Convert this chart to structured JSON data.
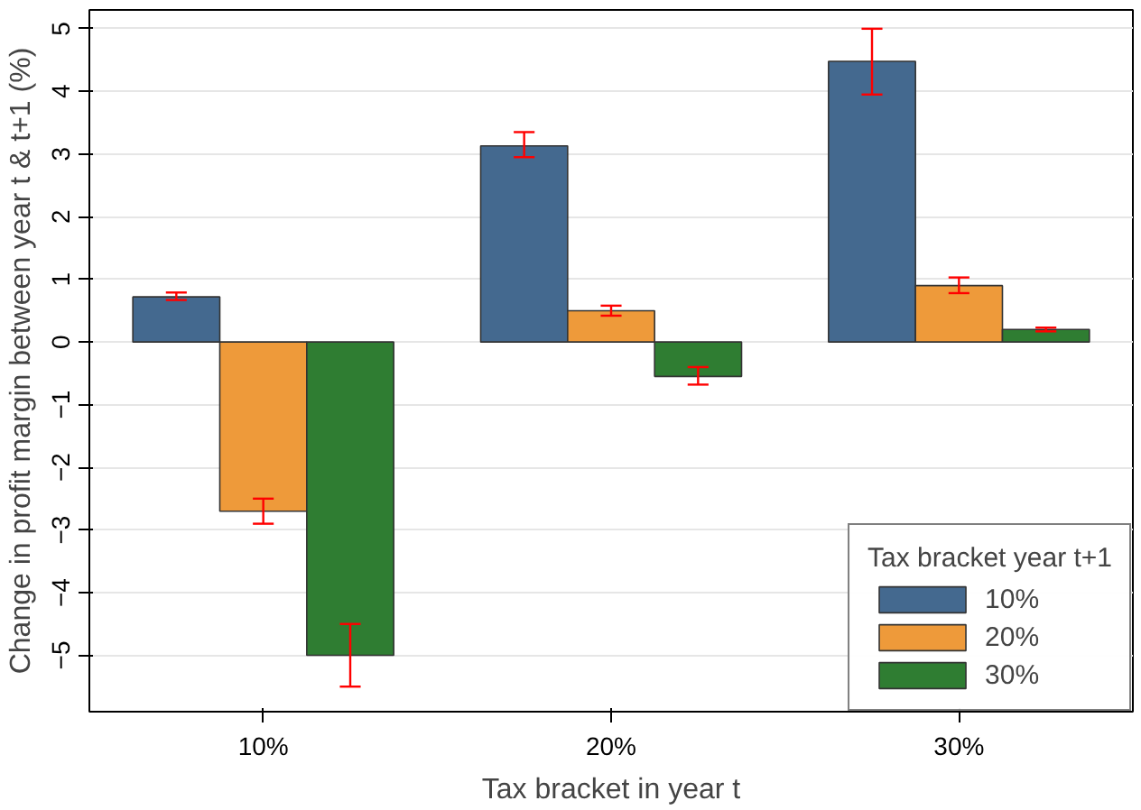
{
  "chart_data": {
    "type": "bar",
    "xlabel": "Tax bracket in year t",
    "ylabel": "Change in profit margin between year t & t+1 (%)",
    "legend_title": "Tax bracket year t+1",
    "categories": [
      "10%",
      "20%",
      "30%"
    ],
    "series": [
      {
        "name": "10%",
        "color": "#44698f",
        "values": [
          0.72,
          3.13,
          4.48
        ],
        "errors": [
          [
            0.67,
            0.79
          ],
          [
            2.95,
            3.35
          ],
          [
            3.95,
            5.0
          ]
        ]
      },
      {
        "name": "20%",
        "color": "#ee9a3a",
        "values": [
          -2.7,
          0.5,
          0.9
        ],
        "errors": [
          [
            -2.9,
            -2.5
          ],
          [
            0.42,
            0.58
          ],
          [
            0.78,
            1.03
          ]
        ]
      },
      {
        "name": "30%",
        "color": "#2f7d32",
        "values": [
          -5.0,
          -0.55,
          0.2
        ],
        "errors": [
          [
            -5.5,
            -4.5
          ],
          [
            -0.68,
            -0.4
          ],
          [
            0.17,
            0.23
          ]
        ]
      }
    ],
    "ylim": [
      -5.9,
      5.3
    ],
    "yticks": [
      -5,
      -4,
      -3,
      -2,
      -1,
      0,
      1,
      2,
      3,
      4,
      5
    ],
    "grid": "y",
    "legend": "bottom right"
  }
}
